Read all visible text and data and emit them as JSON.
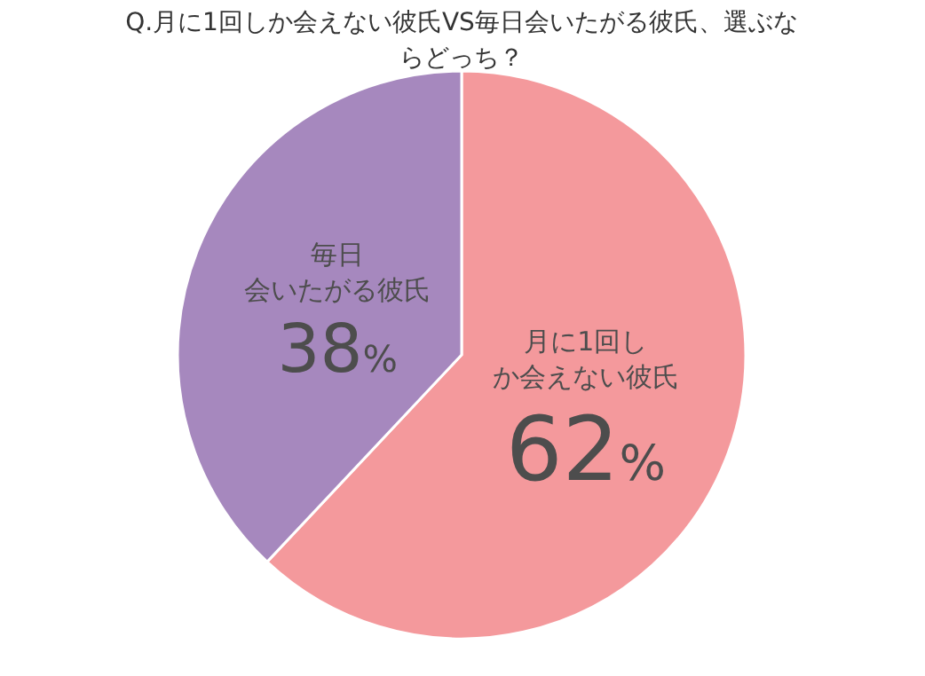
{
  "chart_data": {
    "type": "pie",
    "title": "Q.月に1回しか会えない彼氏VS毎日会いたがる彼氏、選ぶならどっち？",
    "categories": [
      "月に1回しか会えない彼氏",
      "毎日会いたがる彼氏"
    ],
    "values": [
      62,
      38
    ],
    "colors": [
      "#f4999c",
      "#a688be"
    ],
    "value_labels": [
      "62%",
      "38%"
    ]
  }
}
